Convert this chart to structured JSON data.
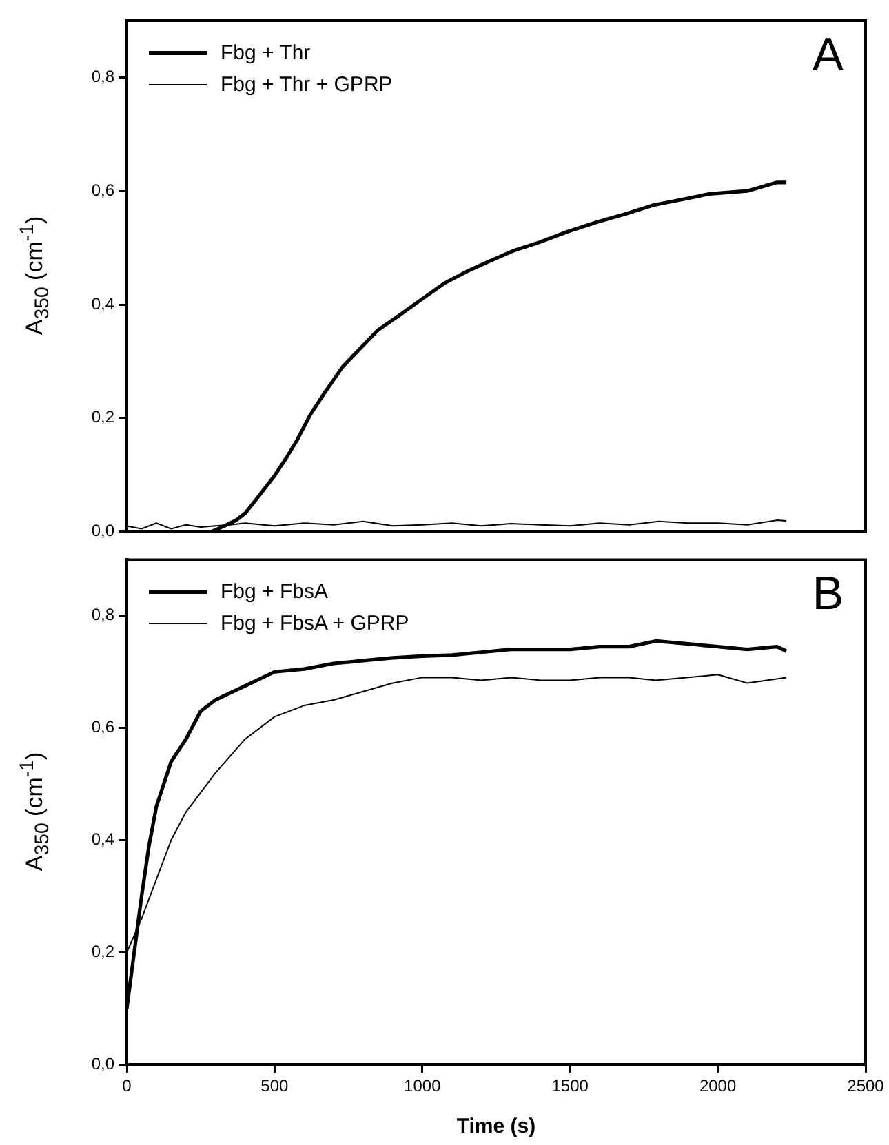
{
  "chart_data": [
    {
      "type": "line",
      "ylabel": "A$_{350}$ (cm$^{-1}$)",
      "annotations": [
        "A"
      ],
      "legend": "top left",
      "tick_labels": "y",
      "marker": "none",
      "line_style": "solid",
      "grid": false,
      "xlim": [
        0,
        2500
      ],
      "xticks": [
        0,
        500,
        1000,
        1500,
        2000,
        2500
      ],
      "ylim": [
        0,
        0.9
      ],
      "yticks": [
        {
          "value": 0,
          "label": "0,0"
        },
        {
          "value": 0.2,
          "label": "0,2"
        },
        {
          "value": 0.4,
          "label": "0,4"
        },
        {
          "value": 0.6,
          "label": "0,6"
        },
        {
          "value": 0.8,
          "label": "0,8"
        }
      ],
      "series": [
        {
          "name": "Fbg + Thr",
          "color": "#000000",
          "x": [
            287,
            330,
            370,
            402,
            450,
            498,
            540,
            575,
            620,
            670,
            730,
            785,
            850,
            920,
            1000,
            1073,
            1150,
            1226,
            1310,
            1398,
            1490,
            1590,
            1690,
            1782,
            1880,
            1973,
            2100,
            2200,
            2232
          ],
          "values": [
            0.0,
            0.01,
            0.02,
            0.033,
            0.065,
            0.097,
            0.13,
            0.16,
            0.205,
            0.245,
            0.29,
            0.32,
            0.355,
            0.38,
            0.41,
            0.437,
            0.458,
            0.476,
            0.495,
            0.51,
            0.528,
            0.545,
            0.56,
            0.575,
            0.585,
            0.595,
            0.6,
            0.615,
            0.615
          ]
        },
        {
          "name": "Fbg + Thr + GPRP",
          "color": "#000000",
          "x": [
            0,
            50,
            100,
            150,
            200,
            250,
            300,
            350,
            400,
            500,
            600,
            700,
            800,
            900,
            1000,
            1100,
            1200,
            1300,
            1400,
            1500,
            1600,
            1700,
            1800,
            1900,
            2000,
            2100,
            2200,
            2232
          ],
          "values": [
            0.01,
            0.005,
            0.015,
            0.005,
            0.012,
            0.008,
            0.01,
            0.012,
            0.015,
            0.01,
            0.015,
            0.012,
            0.018,
            0.01,
            0.012,
            0.015,
            0.01,
            0.014,
            0.012,
            0.01,
            0.015,
            0.012,
            0.018,
            0.015,
            0.015,
            0.012,
            0.02,
            0.019
          ]
        }
      ]
    },
    {
      "type": "line",
      "xlabel": "Time (s)",
      "ylabel": "A$_{350}$ (cm$^{-1}$)",
      "annotations": [
        "B"
      ],
      "legend": "top left",
      "marker": "none",
      "line_style": "solid",
      "grid": false,
      "xlim": [
        0,
        2500
      ],
      "xticks": [
        0,
        500,
        1000,
        1500,
        2000,
        2500
      ],
      "ylim": [
        0,
        0.9
      ],
      "yticks": [
        {
          "value": 0,
          "label": "0,0"
        },
        {
          "value": 0.2,
          "label": "0,2"
        },
        {
          "value": 0.4,
          "label": "0,4"
        },
        {
          "value": 0.6,
          "label": "0,6"
        },
        {
          "value": 0.8,
          "label": "0,8"
        }
      ],
      "series": [
        {
          "name": "Fbg + FbsA",
          "color": "#000000",
          "x": [
            0,
            25,
            50,
            75,
            100,
            150,
            200,
            250,
            300,
            400,
            500,
            600,
            700,
            800,
            900,
            1000,
            1100,
            1200,
            1300,
            1400,
            1500,
            1600,
            1700,
            1790,
            2000,
            2100,
            2200,
            2232
          ],
          "values": [
            0.1,
            0.2,
            0.3,
            0.39,
            0.46,
            0.54,
            0.58,
            0.63,
            0.65,
            0.675,
            0.7,
            0.705,
            0.715,
            0.72,
            0.725,
            0.728,
            0.73,
            0.735,
            0.74,
            0.74,
            0.74,
            0.745,
            0.745,
            0.755,
            0.745,
            0.74,
            0.745,
            0.737
          ]
        },
        {
          "name": "Fbg + FbsA + GPRP",
          "color": "#000000",
          "x": [
            0,
            50,
            100,
            150,
            200,
            300,
            400,
            500,
            600,
            700,
            800,
            900,
            1000,
            1100,
            1200,
            1300,
            1400,
            1500,
            1600,
            1700,
            1790,
            2000,
            2100,
            2232
          ],
          "values": [
            0.2,
            0.26,
            0.33,
            0.4,
            0.45,
            0.52,
            0.58,
            0.62,
            0.64,
            0.65,
            0.665,
            0.68,
            0.69,
            0.69,
            0.685,
            0.69,
            0.685,
            0.685,
            0.69,
            0.69,
            0.685,
            0.695,
            0.68,
            0.69
          ]
        }
      ]
    }
  ]
}
